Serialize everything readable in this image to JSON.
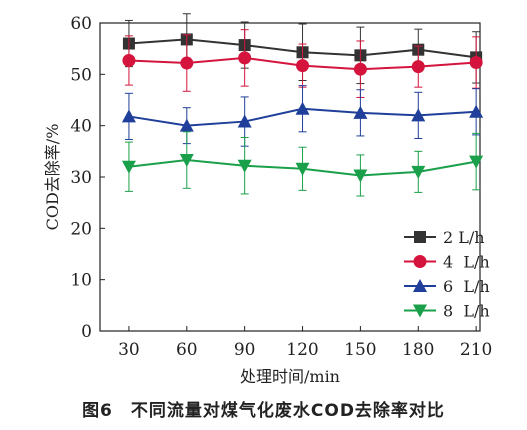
{
  "caption": "图6　不同流量对煤气化废水COD去除率对比",
  "chart_data": {
    "type": "line",
    "title": "",
    "xlabel": "处理时间/min",
    "ylabel": "COD去除率/%",
    "x": [
      30,
      60,
      90,
      120,
      150,
      180,
      210
    ],
    "xlim": [
      15,
      212
    ],
    "ylim": [
      0,
      60
    ],
    "yticks": [
      0,
      10,
      20,
      30,
      40,
      50,
      60
    ],
    "grid": false,
    "legend_position": "bottom-right",
    "series": [
      {
        "name": "2 L/h",
        "marker": "square",
        "color": "#333333",
        "values": [
          56.0,
          56.8,
          55.7,
          54.3,
          53.7,
          54.8,
          53.3
        ],
        "errors": [
          4.5,
          5.0,
          4.5,
          5.5,
          5.5,
          4.0,
          5.0
        ]
      },
      {
        "name": "4  L/h",
        "marker": "circle",
        "color": "#d4143c",
        "values": [
          52.7,
          52.2,
          53.2,
          51.7,
          51.0,
          51.5,
          52.3
        ],
        "errors": [
          4.8,
          5.5,
          5.5,
          4.2,
          5.5,
          4.0,
          5.0
        ]
      },
      {
        "name": "6  L/h",
        "marker": "triangle-up",
        "color": "#1f3f9a",
        "values": [
          41.8,
          40.0,
          40.8,
          43.3,
          42.5,
          42.0,
          42.7
        ],
        "errors": [
          4.5,
          3.5,
          4.8,
          4.5,
          4.5,
          4.5,
          4.5
        ]
      },
      {
        "name": "8  L/h",
        "marker": "triangle-down",
        "color": "#1aa04a",
        "values": [
          32.0,
          33.3,
          32.2,
          31.6,
          30.3,
          31.0,
          33.0
        ],
        "errors": [
          4.8,
          5.5,
          5.5,
          4.2,
          4.0,
          4.0,
          5.5
        ]
      }
    ]
  }
}
